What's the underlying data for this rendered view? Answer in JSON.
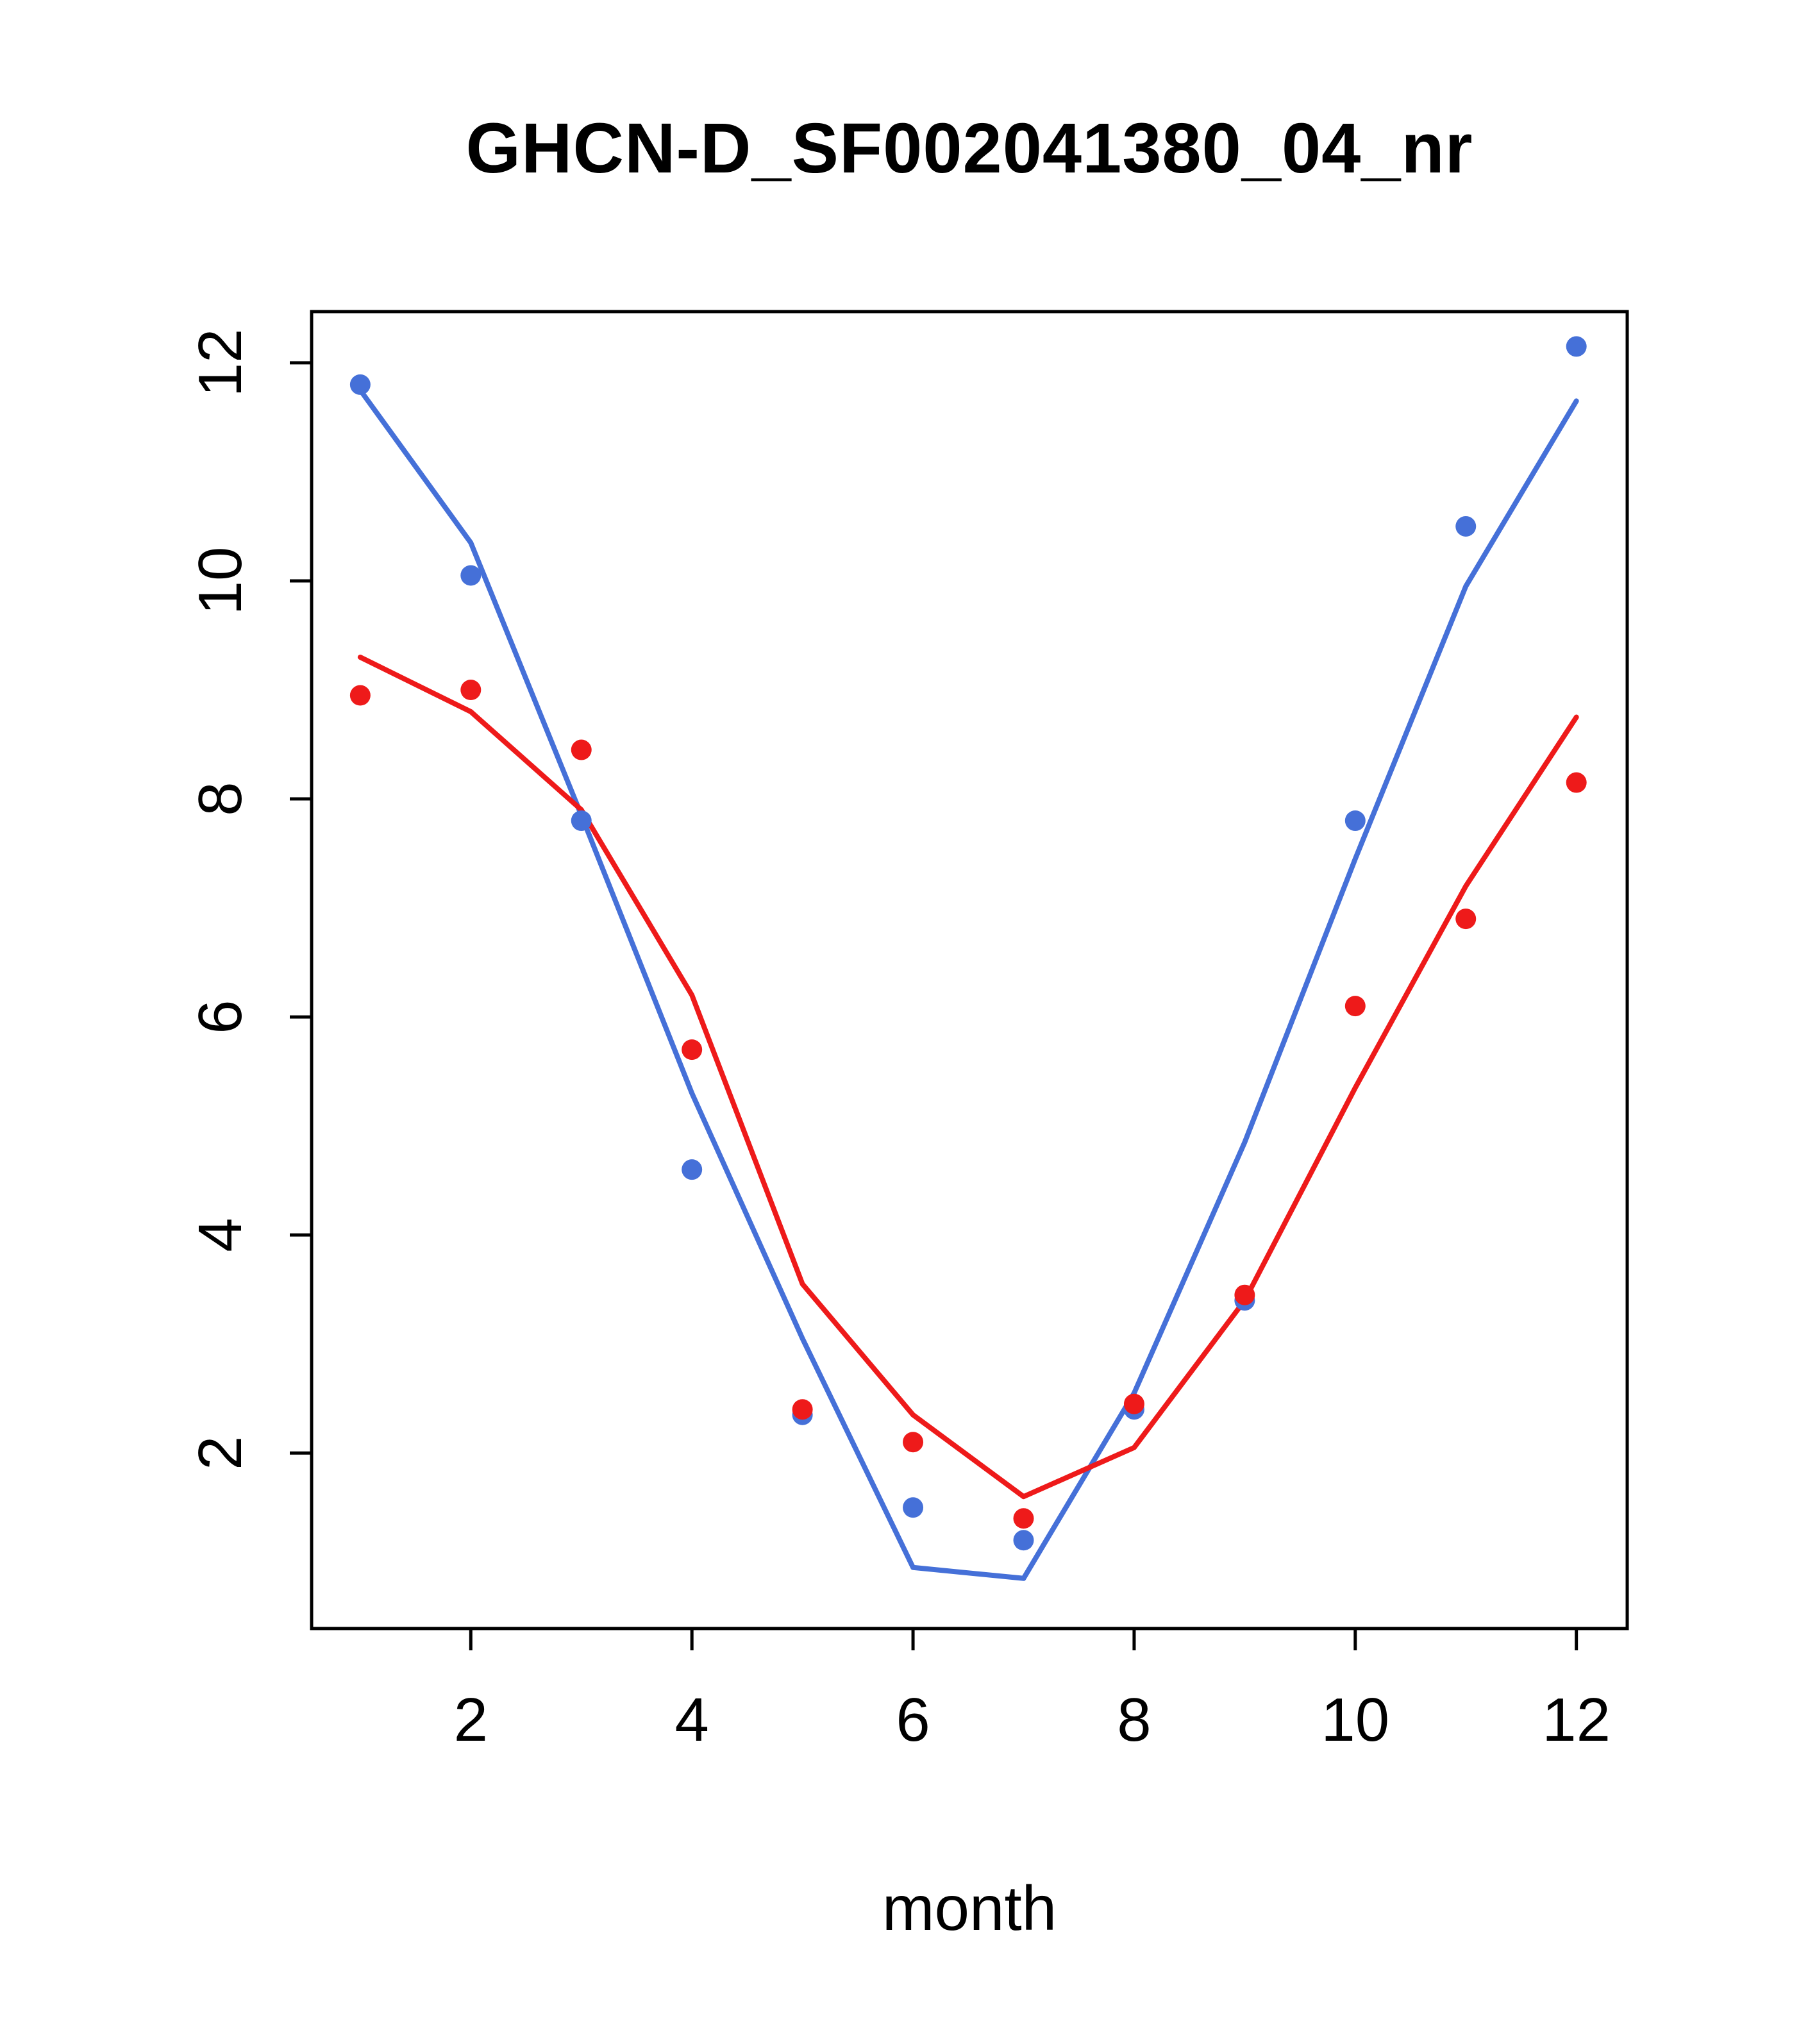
{
  "chart_data": {
    "type": "scatter",
    "title": "GHCN-D_SF002041380_04_nr",
    "xlabel": "month",
    "ylabel": "",
    "x": [
      1,
      2,
      3,
      4,
      5,
      6,
      7,
      8,
      9,
      10,
      11,
      12
    ],
    "xticks": [
      2,
      4,
      6,
      8,
      10,
      12
    ],
    "yticks": [
      2,
      4,
      6,
      8,
      10,
      12
    ],
    "xlim": [
      0.56,
      12.46
    ],
    "ylim": [
      0.39,
      12.47
    ],
    "grid": false,
    "legend": "none",
    "series": [
      {
        "name": "blue-line-fit",
        "type": "line",
        "color": "#4570d8",
        "values": [
          11.75,
          10.35,
          7.85,
          5.3,
          3.05,
          0.95,
          0.85,
          2.55,
          4.85,
          7.45,
          9.95,
          11.65
        ]
      },
      {
        "name": "red-line-fit",
        "type": "line",
        "color": "#ee1a1a",
        "values": [
          9.3,
          8.8,
          7.9,
          6.2,
          3.55,
          2.35,
          1.6,
          2.05,
          3.4,
          5.35,
          7.2,
          8.75
        ]
      },
      {
        "name": "blue-points",
        "type": "points",
        "color": "#4570d8",
        "values": [
          11.8,
          10.05,
          7.8,
          4.6,
          2.35,
          1.5,
          1.2,
          2.4,
          3.4,
          7.8,
          10.5,
          12.15
        ]
      },
      {
        "name": "red-points",
        "type": "points",
        "color": "#ee1a1a",
        "values": [
          8.95,
          9.0,
          8.45,
          5.7,
          2.4,
          2.1,
          1.4,
          2.45,
          3.45,
          6.1,
          6.9,
          8.15
        ]
      }
    ]
  },
  "colors": {
    "blue": "#4570d8",
    "red": "#ee1a1a",
    "axis": "#000000",
    "background": "#ffffff"
  }
}
